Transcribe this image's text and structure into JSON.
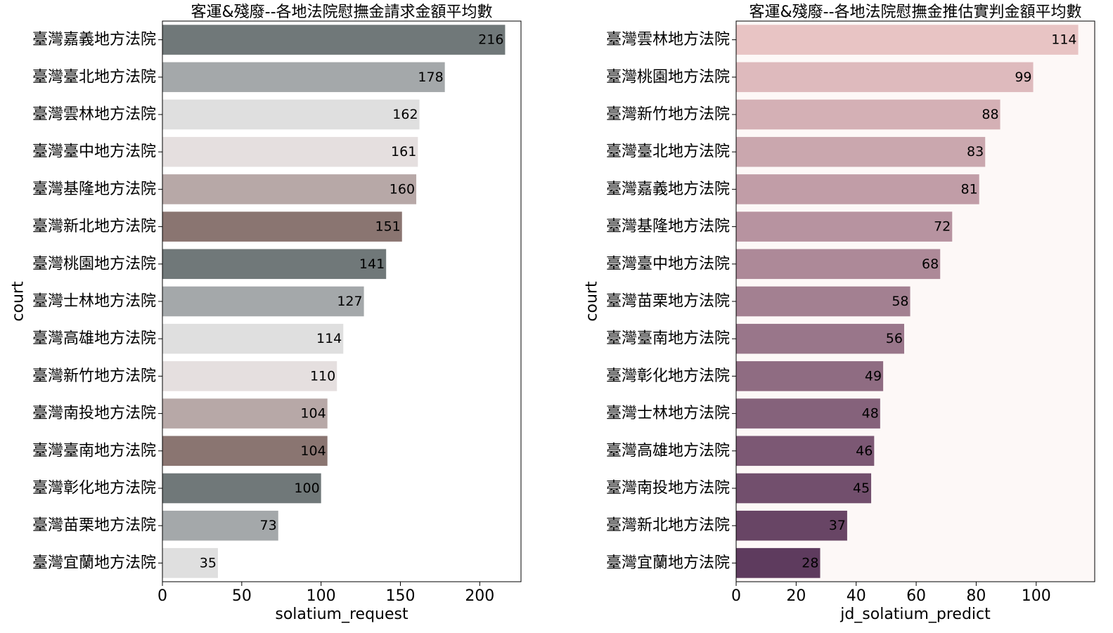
{
  "chart_data": [
    {
      "type": "bar",
      "orientation": "horizontal",
      "title": "客運&殘廢--各地法院慰撫金請求金額平均數",
      "xlabel": "solatium_request",
      "ylabel": "court",
      "xlim": [
        0,
        226
      ],
      "xticks": [
        0,
        50,
        100,
        150,
        200
      ],
      "grid": false,
      "background": "#ffffff",
      "palette": [
        "#707879",
        "#a4a8aa",
        "#dfdfdf",
        "#e5dfdf",
        "#b7a8a7",
        "#8a7571"
      ],
      "categories": [
        "臺灣嘉義地方法院",
        "臺灣臺北地方法院",
        "臺灣雲林地方法院",
        "臺灣臺中地方法院",
        "臺灣基隆地方法院",
        "臺灣新北地方法院",
        "臺灣桃園地方法院",
        "臺灣士林地方法院",
        "臺灣高雄地方法院",
        "臺灣新竹地方法院",
        "臺灣南投地方法院",
        "臺灣臺南地方法院",
        "臺灣彰化地方法院",
        "臺灣苗栗地方法院",
        "臺灣宜蘭地方法院"
      ],
      "values": [
        216,
        178,
        162,
        161,
        160,
        151,
        141,
        127,
        114,
        110,
        104,
        104,
        100,
        73,
        35
      ]
    },
    {
      "type": "bar",
      "orientation": "horizontal",
      "title": "客運&殘廢--各地法院慰撫金推估實判金額平均數",
      "xlabel": "jd_solatium_predict",
      "ylabel": "court",
      "xlim": [
        0,
        119.5
      ],
      "xticks": [
        0,
        20,
        40,
        60,
        80,
        100
      ],
      "grid": false,
      "background": "#fdf8f7",
      "palette_gradient": [
        "#e8c4c4",
        "#5e3b5e"
      ],
      "categories": [
        "臺灣雲林地方法院",
        "臺灣桃園地方法院",
        "臺灣新竹地方法院",
        "臺灣臺北地方法院",
        "臺灣嘉義地方法院",
        "臺灣基隆地方法院",
        "臺灣臺中地方法院",
        "臺灣苗栗地方法院",
        "臺灣臺南地方法院",
        "臺灣彰化地方法院",
        "臺灣士林地方法院",
        "臺灣高雄地方法院",
        "臺灣南投地方法院",
        "臺灣新北地方法院",
        "臺灣宜蘭地方法院"
      ],
      "values": [
        114,
        99,
        88,
        83,
        81,
        72,
        68,
        58,
        56,
        49,
        48,
        46,
        45,
        37,
        28
      ]
    }
  ]
}
